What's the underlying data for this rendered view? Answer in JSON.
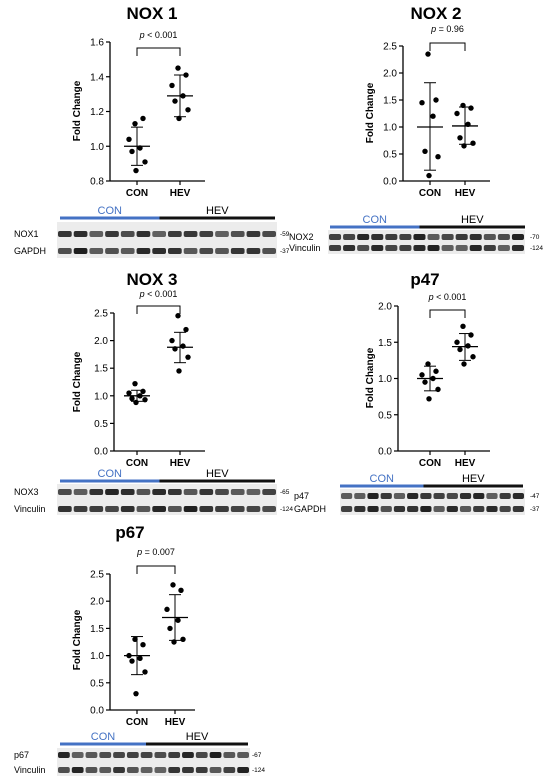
{
  "colors": {
    "con_bar": "#4472c4",
    "hev_bar": "#111111",
    "con_text": "#4472c4",
    "hev_text": "#000000",
    "points": "#000000"
  },
  "chart_data": [
    {
      "id": "nox1",
      "type": "scatter",
      "title": "NOX 1",
      "ylabel": "Fold Change",
      "categories": [
        "CON",
        "HEV"
      ],
      "ylim": [
        0.8,
        1.6
      ],
      "yticks": [
        "0.8",
        "1.0",
        "1.2",
        "1.4",
        "1.6"
      ],
      "series": [
        {
          "category": "CON",
          "points": [
            1.13,
            1.16,
            1.04,
            0.99,
            0.97,
            0.91,
            0.86
          ],
          "mean": 1.0,
          "sd_low": 0.89,
          "sd_high": 1.11
        },
        {
          "category": "HEV",
          "points": [
            1.45,
            1.41,
            1.35,
            1.29,
            1.26,
            1.21,
            1.16
          ],
          "mean": 1.29,
          "sd_low": 1.17,
          "sd_high": 1.41
        }
      ],
      "annotation": {
        "p_label": "p",
        "p_text": " < 0.001"
      },
      "blot": {
        "group_labels": [
          "CON",
          "HEV"
        ],
        "rows": [
          "NOX1",
          "GAPDH"
        ],
        "kda": [
          "-59",
          "-37"
        ]
      }
    },
    {
      "id": "nox2",
      "type": "scatter",
      "title": "NOX 2",
      "ylabel": "Fold Change",
      "categories": [
        "CON",
        "HEV"
      ],
      "ylim": [
        0,
        2.5
      ],
      "yticks": [
        "0.0",
        "0.5",
        "1.0",
        "1.5",
        "2.0",
        "2.5"
      ],
      "series": [
        {
          "category": "CON",
          "points": [
            2.35,
            1.5,
            1.45,
            1.2,
            0.55,
            0.45,
            0.1
          ],
          "mean": 1.0,
          "sd_low": 0.2,
          "sd_high": 1.82
        },
        {
          "category": "HEV",
          "points": [
            1.4,
            1.35,
            1.25,
            1.05,
            0.8,
            0.7,
            0.65
          ],
          "mean": 1.02,
          "sd_low": 0.68,
          "sd_high": 1.37
        }
      ],
      "annotation": {
        "p_label": "p",
        "p_text": " = 0.96"
      },
      "blot": {
        "group_labels": [
          "CON",
          "HEV"
        ],
        "rows": [
          "NOX2",
          "Vinculin"
        ],
        "kda": [
          "-70",
          "-124"
        ]
      }
    },
    {
      "id": "nox3",
      "type": "scatter",
      "title": "NOX 3",
      "ylabel": "Fold Change",
      "categories": [
        "CON",
        "HEV"
      ],
      "ylim": [
        0,
        2.5
      ],
      "yticks": [
        "0.0",
        "0.5",
        "1.0",
        "1.5",
        "2.0",
        "2.5"
      ],
      "series": [
        {
          "category": "CON",
          "points": [
            1.22,
            1.08,
            1.05,
            1.0,
            0.95,
            0.93,
            0.88
          ],
          "mean": 1.0,
          "sd_low": 0.9,
          "sd_high": 1.1
        },
        {
          "category": "HEV",
          "points": [
            2.45,
            2.2,
            2.0,
            1.9,
            1.85,
            1.7,
            1.45
          ],
          "mean": 1.88,
          "sd_low": 1.6,
          "sd_high": 2.15
        }
      ],
      "annotation": {
        "p_label": "p",
        "p_text": " < 0.001"
      },
      "blot": {
        "group_labels": [
          "CON",
          "HEV"
        ],
        "rows": [
          "NOX3",
          "Vinculin"
        ],
        "kda": [
          "-65",
          "-124"
        ]
      }
    },
    {
      "id": "p47",
      "type": "scatter",
      "title": "p47",
      "ylabel": "Fold Change",
      "categories": [
        "CON",
        "HEV"
      ],
      "ylim": [
        0,
        2.0
      ],
      "yticks": [
        "0.0",
        "0.5",
        "1.0",
        "1.5",
        "2.0"
      ],
      "series": [
        {
          "category": "CON",
          "points": [
            1.2,
            1.1,
            1.05,
            1.0,
            0.95,
            0.85,
            0.72
          ],
          "mean": 1.0,
          "sd_low": 0.83,
          "sd_high": 1.17
        },
        {
          "category": "HEV",
          "points": [
            1.72,
            1.6,
            1.5,
            1.45,
            1.4,
            1.3,
            1.2
          ],
          "mean": 1.44,
          "sd_low": 1.25,
          "sd_high": 1.62
        }
      ],
      "annotation": {
        "p_label": "p",
        "p_text": " < 0.001"
      },
      "blot": {
        "group_labels": [
          "CON",
          "HEV"
        ],
        "rows": [
          "p47",
          "GAPDH"
        ],
        "kda": [
          "-47",
          "-37"
        ]
      }
    },
    {
      "id": "p67",
      "type": "scatter",
      "title": "p67",
      "ylabel": "Fold Change",
      "categories": [
        "CON",
        "HEV"
      ],
      "ylim": [
        0,
        2.5
      ],
      "yticks": [
        "0.0",
        "0.5",
        "1.0",
        "1.5",
        "2.0",
        "2.5"
      ],
      "series": [
        {
          "category": "CON",
          "points": [
            1.3,
            1.2,
            1.0,
            0.95,
            0.9,
            0.7,
            0.3
          ],
          "mean": 1.0,
          "sd_low": 0.65,
          "sd_high": 1.35
        },
        {
          "category": "HEV",
          "points": [
            2.3,
            2.2,
            1.85,
            1.65,
            1.5,
            1.3,
            1.25
          ],
          "mean": 1.7,
          "sd_low": 1.28,
          "sd_high": 2.12
        }
      ],
      "annotation": {
        "p_label": "p",
        "p_text": " = 0.007"
      },
      "blot": {
        "group_labels": [
          "CON",
          "HEV"
        ],
        "rows": [
          "p67",
          "Vinculin"
        ],
        "kda": [
          "-67",
          "-124"
        ]
      }
    }
  ]
}
